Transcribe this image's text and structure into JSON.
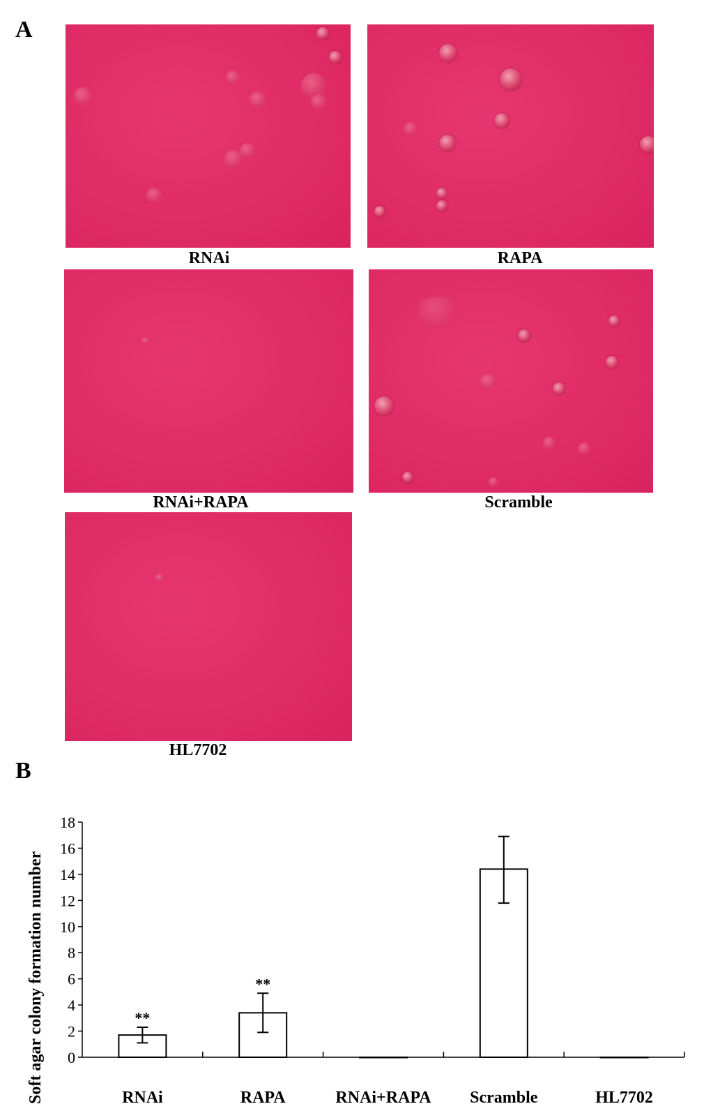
{
  "panel_a": {
    "letter": "A",
    "images": [
      {
        "label": "RNAi"
      },
      {
        "label": "RAPA"
      },
      {
        "label": "RNAi+RAPA"
      },
      {
        "label": "Scramble"
      },
      {
        "label": "HL7702"
      }
    ],
    "tint_color": "#e02a66"
  },
  "panel_b": {
    "letter": "B"
  },
  "chart_data": {
    "type": "bar",
    "categories": [
      "RNAi",
      "RAPA",
      "RNAi+RAPA",
      "Scramble",
      "HL7702"
    ],
    "values": [
      1.7,
      3.4,
      0,
      14.4,
      0
    ],
    "error_low": [
      1.1,
      1.9,
      0,
      11.8,
      0
    ],
    "error_high": [
      2.3,
      4.9,
      0,
      16.9,
      0
    ],
    "annotations": [
      "**",
      "**",
      "",
      "",
      ""
    ],
    "ylabel": "Soft agar colony formation number",
    "xlabel": "",
    "ylim": [
      0,
      18
    ],
    "yticks": [
      0,
      2,
      4,
      6,
      8,
      10,
      12,
      14,
      16,
      18
    ],
    "bar_fill": "#ffffff",
    "bar_stroke": "#000000",
    "grid": false,
    "legend": "none"
  }
}
